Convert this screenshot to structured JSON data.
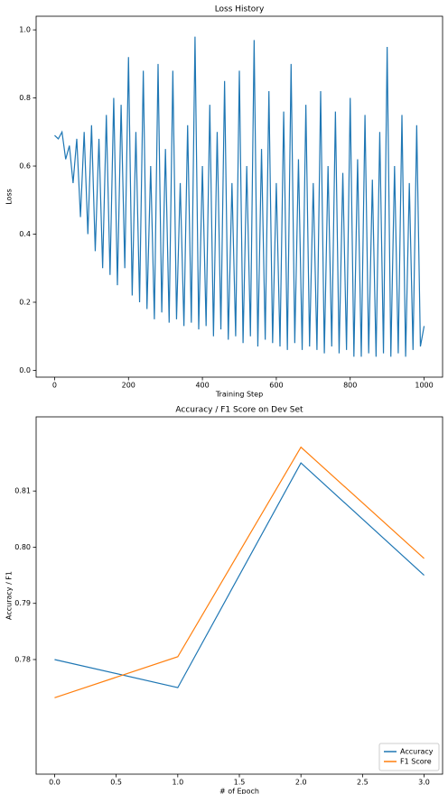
{
  "chart_data": [
    {
      "type": "line",
      "title": "Loss History",
      "xlabel": "Training Step",
      "ylabel": "Loss",
      "x": [
        0,
        10,
        20,
        30,
        40,
        50,
        60,
        70,
        80,
        90,
        100,
        110,
        120,
        130,
        140,
        150,
        160,
        170,
        180,
        190,
        200,
        210,
        220,
        230,
        240,
        250,
        260,
        270,
        280,
        290,
        300,
        310,
        320,
        330,
        340,
        350,
        360,
        370,
        380,
        390,
        400,
        410,
        420,
        430,
        440,
        450,
        460,
        470,
        480,
        490,
        500,
        510,
        520,
        530,
        540,
        550,
        560,
        570,
        580,
        590,
        600,
        610,
        620,
        630,
        640,
        650,
        660,
        670,
        680,
        690,
        700,
        710,
        720,
        730,
        740,
        750,
        760,
        770,
        780,
        790,
        800,
        810,
        820,
        830,
        840,
        850,
        860,
        870,
        880,
        890,
        900,
        910,
        920,
        930,
        940,
        950,
        960,
        970,
        980,
        990,
        1000
      ],
      "series": [
        {
          "name": "Loss",
          "color": "#1f77b4",
          "values": [
            0.69,
            0.68,
            0.7,
            0.62,
            0.66,
            0.55,
            0.68,
            0.45,
            0.7,
            0.4,
            0.72,
            0.35,
            0.68,
            0.3,
            0.75,
            0.28,
            0.8,
            0.25,
            0.78,
            0.3,
            0.92,
            0.22,
            0.7,
            0.2,
            0.88,
            0.18,
            0.6,
            0.15,
            0.9,
            0.17,
            0.65,
            0.14,
            0.88,
            0.15,
            0.55,
            0.13,
            0.72,
            0.14,
            0.98,
            0.12,
            0.6,
            0.13,
            0.78,
            0.1,
            0.7,
            0.12,
            0.85,
            0.09,
            0.55,
            0.1,
            0.88,
            0.08,
            0.6,
            0.1,
            0.97,
            0.07,
            0.65,
            0.09,
            0.82,
            0.08,
            0.55,
            0.07,
            0.76,
            0.06,
            0.9,
            0.08,
            0.62,
            0.06,
            0.78,
            0.07,
            0.55,
            0.06,
            0.82,
            0.05,
            0.6,
            0.07,
            0.76,
            0.05,
            0.58,
            0.06,
            0.8,
            0.04,
            0.62,
            0.04,
            0.75,
            0.05,
            0.56,
            0.04,
            0.7,
            0.05,
            0.95,
            0.04,
            0.6,
            0.05,
            0.75,
            0.04,
            0.55,
            0.06,
            0.72,
            0.07,
            0.13
          ]
        }
      ],
      "xlim": [
        -50,
        1050
      ],
      "xticks": [
        0,
        200,
        400,
        600,
        800,
        1000
      ],
      "ylim": [
        -0.02,
        1.04
      ],
      "yticks": [
        {
          "value": 0,
          "label": "0.0"
        },
        0.2,
        0.4,
        0.6,
        0.8,
        {
          "value": 1,
          "label": "1.0"
        }
      ]
    },
    {
      "type": "line",
      "title": "Accuracy / F1 Score on Dev Set",
      "xlabel": "# of Epoch",
      "ylabel": "Accuracy / F1",
      "x": [
        0,
        1,
        2,
        3
      ],
      "series": [
        {
          "name": "Accuracy",
          "color": "#1f77b4",
          "values": [
            0.78,
            0.775,
            0.815,
            0.795
          ]
        },
        {
          "name": "F1 Score",
          "color": "#ff7f0e",
          "values": [
            0.7732,
            0.7805,
            0.8178,
            0.798
          ]
        }
      ],
      "xlim": [
        -0.15,
        3.15
      ],
      "xticks": [
        {
          "value": 0,
          "label": "0.0"
        },
        0.5,
        {
          "value": 1,
          "label": "1.0"
        },
        1.5,
        {
          "value": 2,
          "label": "2.0"
        },
        2.5,
        {
          "value": 3,
          "label": "3.0"
        }
      ],
      "ylim": [
        0.7596,
        0.8232
      ],
      "yticks": [
        0.78,
        0.79,
        {
          "value": 0.8,
          "label": "0.80"
        },
        0.81
      ],
      "legend": "lower right"
    }
  ]
}
